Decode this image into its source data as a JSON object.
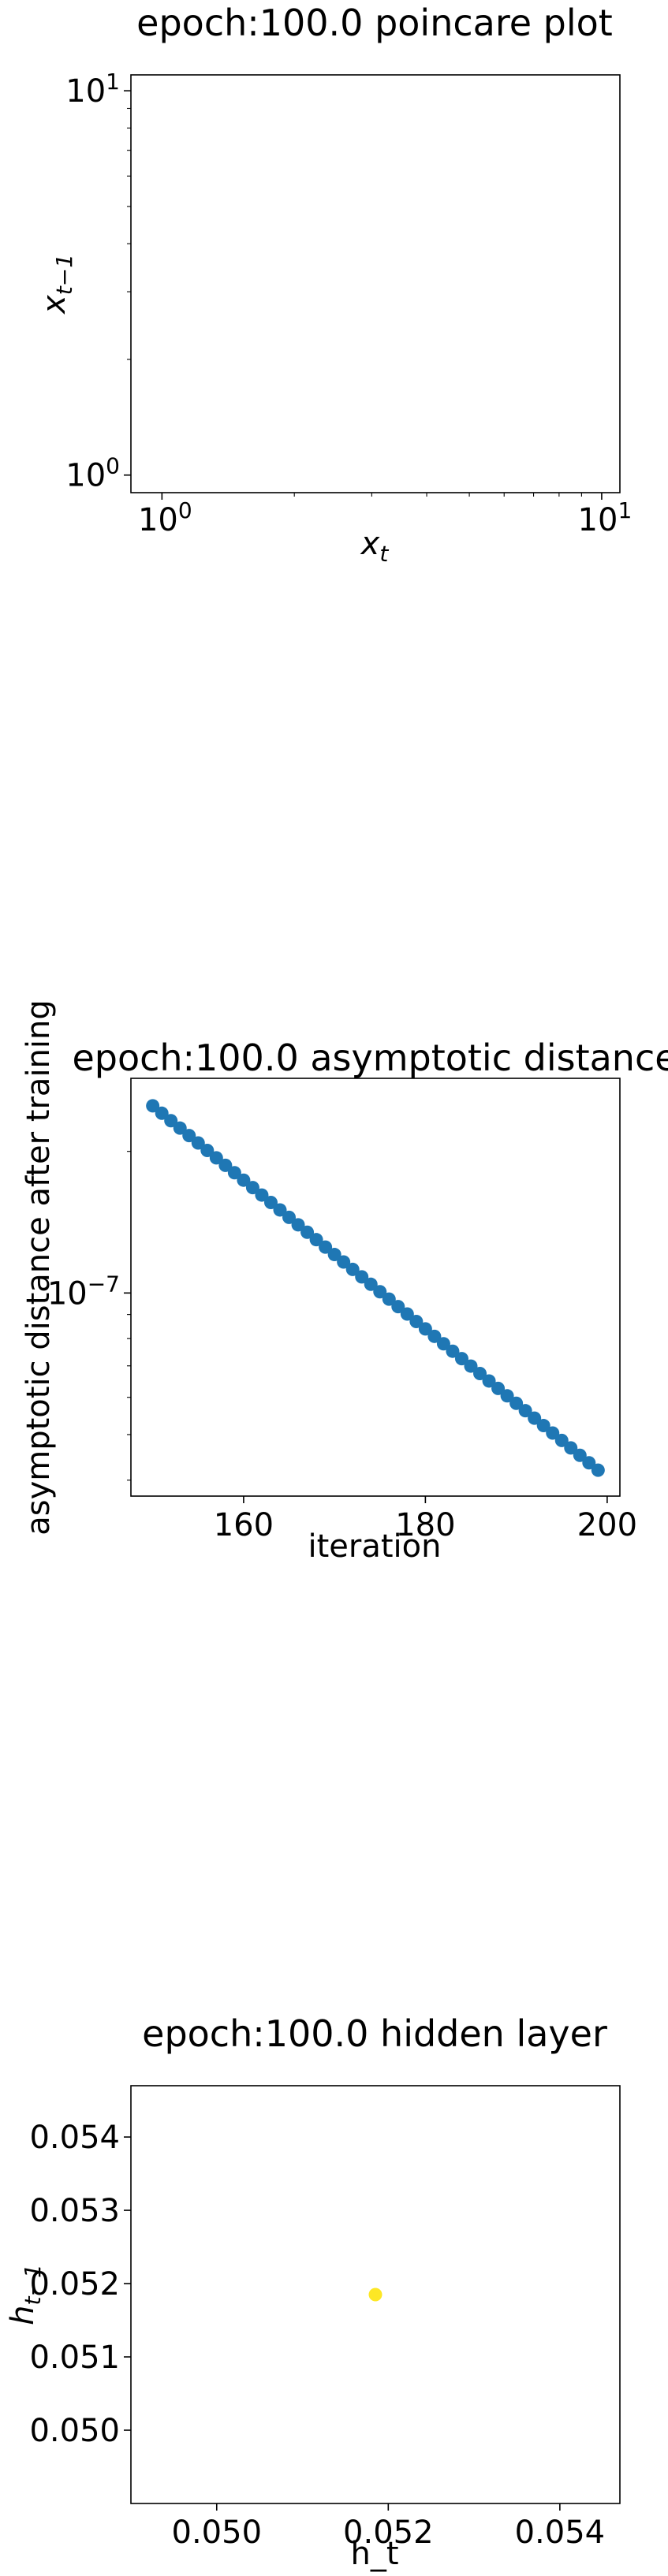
{
  "chart_data": [
    {
      "type": "scatter",
      "title": "epoch:100.0 poincare plot",
      "xlabel_base": "x",
      "xlabel_sub": "t",
      "ylabel_base": "x",
      "ylabel_sub": "t−1",
      "xscale": "log",
      "yscale": "log",
      "xlim": [
        0.85,
        11
      ],
      "ylim": [
        0.9,
        11
      ],
      "x_ticks": [
        {
          "value": 1,
          "base": "10",
          "exp": "0"
        },
        {
          "value": 10,
          "base": "10",
          "exp": "1"
        }
      ],
      "y_ticks": [
        {
          "value": 1,
          "base": "10",
          "exp": "0"
        },
        {
          "value": 10,
          "base": "10",
          "exp": "1"
        }
      ],
      "points": [],
      "grid": false
    },
    {
      "type": "scatter",
      "title": "epoch:100.0 asymptotic distance",
      "xlabel": "iteration",
      "ylabel": "asymptotic distance after training",
      "yscale": "log",
      "xlim": [
        147.6,
        201.4
      ],
      "ylim": [
        3.7e-08,
        2.86e-07
      ],
      "x_ticks": [
        {
          "value": 160,
          "label": "160"
        },
        {
          "value": 180,
          "label": "180"
        },
        {
          "value": 200,
          "label": "200"
        }
      ],
      "y_ticks": [
        {
          "value": 1e-07,
          "base": "10",
          "exp": "−7"
        }
      ],
      "x_start": 150,
      "x_end": 199,
      "y_start": 2.5e-07,
      "y_end": 4.2e-08,
      "color": "#1f77b4",
      "grid": false
    },
    {
      "type": "scatter",
      "title": "epoch:100.0 hidden layer",
      "xlabel": "h_t",
      "ylabel_base": "h",
      "ylabel_sub": "t−1",
      "xlim": [
        0.049,
        0.0547
      ],
      "ylim": [
        0.049,
        0.0547
      ],
      "x_ticks": [
        {
          "value": 0.05,
          "label": "0.050"
        },
        {
          "value": 0.052,
          "label": "0.052"
        },
        {
          "value": 0.054,
          "label": "0.054"
        }
      ],
      "y_ticks": [
        {
          "value": 0.05,
          "label": "0.050"
        },
        {
          "value": 0.051,
          "label": "0.051"
        },
        {
          "value": 0.052,
          "label": "0.052"
        },
        {
          "value": 0.053,
          "label": "0.053"
        },
        {
          "value": 0.054,
          "label": "0.054"
        }
      ],
      "points": [
        {
          "x": 0.05185,
          "y": 0.05185
        }
      ],
      "color": "#fde725",
      "grid": false
    }
  ]
}
